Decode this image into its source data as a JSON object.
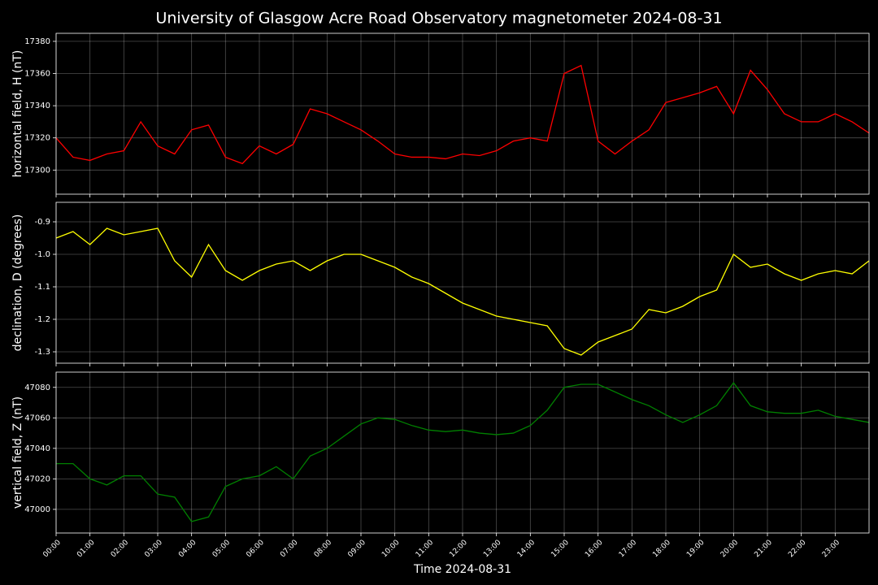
{
  "title": "University of Glasgow Acre Road Observatory magnetometer 2024-08-31",
  "chart_data": [
    {
      "type": "line",
      "ylabel": "horizontal field, H (nT)",
      "x": [
        "00:00",
        "00:30",
        "01:00",
        "01:30",
        "02:00",
        "02:30",
        "03:00",
        "03:30",
        "04:00",
        "04:30",
        "05:00",
        "05:30",
        "06:00",
        "06:30",
        "07:00",
        "07:30",
        "08:00",
        "08:30",
        "09:00",
        "09:30",
        "10:00",
        "10:30",
        "11:00",
        "11:30",
        "12:00",
        "12:30",
        "13:00",
        "13:30",
        "14:00",
        "14:30",
        "15:00",
        "15:30",
        "16:00",
        "16:30",
        "17:00",
        "17:30",
        "18:00",
        "18:30",
        "19:00",
        "19:30",
        "20:00",
        "20:30",
        "21:00",
        "21:30",
        "22:00",
        "22:30",
        "23:00",
        "23:30",
        "24:00"
      ],
      "series": [
        {
          "name": "H",
          "color": "#ff0000",
          "values": [
            17320,
            17308,
            17306,
            17310,
            17312,
            17330,
            17315,
            17310,
            17325,
            17328,
            17308,
            17304,
            17315,
            17310,
            17316,
            17338,
            17335,
            17330,
            17325,
            17318,
            17310,
            17308,
            17308,
            17307,
            17310,
            17309,
            17312,
            17318,
            17320,
            17318,
            17360,
            17365,
            17318,
            17310,
            17318,
            17325,
            17342,
            17345,
            17348,
            17352,
            17335,
            17362,
            17350,
            17335,
            17330,
            17330,
            17335,
            17330,
            17323
          ]
        }
      ],
      "xlim": [
        "00:00",
        "24:00"
      ],
      "ylim": [
        17285,
        17385
      ],
      "yticks": [
        17300,
        17320,
        17340,
        17360,
        17380
      ],
      "grid": true
    },
    {
      "type": "line",
      "ylabel": "declination, D (degrees)",
      "x": [
        "00:00",
        "00:30",
        "01:00",
        "01:30",
        "02:00",
        "02:30",
        "03:00",
        "03:30",
        "04:00",
        "04:30",
        "05:00",
        "05:30",
        "06:00",
        "06:30",
        "07:00",
        "07:30",
        "08:00",
        "08:30",
        "09:00",
        "09:30",
        "10:00",
        "10:30",
        "11:00",
        "11:30",
        "12:00",
        "12:30",
        "13:00",
        "13:30",
        "14:00",
        "14:30",
        "15:00",
        "15:30",
        "16:00",
        "16:30",
        "17:00",
        "17:30",
        "18:00",
        "18:30",
        "19:00",
        "19:30",
        "20:00",
        "20:30",
        "21:00",
        "21:30",
        "22:00",
        "22:30",
        "23:00",
        "23:30",
        "24:00"
      ],
      "series": [
        {
          "name": "D",
          "color": "#ffff00",
          "values": [
            -0.95,
            -0.93,
            -0.97,
            -0.92,
            -0.94,
            -0.93,
            -0.92,
            -1.02,
            -1.07,
            -0.97,
            -1.05,
            -1.08,
            -1.05,
            -1.03,
            -1.02,
            -1.05,
            -1.02,
            -1.0,
            -1.0,
            -1.02,
            -1.04,
            -1.07,
            -1.09,
            -1.12,
            -1.15,
            -1.17,
            -1.19,
            -1.2,
            -1.21,
            -1.22,
            -1.29,
            -1.31,
            -1.27,
            -1.25,
            -1.23,
            -1.17,
            -1.18,
            -1.16,
            -1.13,
            -1.11,
            -1.0,
            -1.04,
            -1.03,
            -1.06,
            -1.08,
            -1.06,
            -1.05,
            -1.06,
            -1.02
          ]
        }
      ],
      "xlim": [
        "00:00",
        "24:00"
      ],
      "ylim": [
        -1.335,
        -0.84
      ],
      "yticks": [
        -0.9,
        {
          "value": -1.0,
          "label": "-1.0"
        },
        -1.1,
        -1.2,
        -1.3
      ],
      "grid": true
    },
    {
      "type": "line",
      "ylabel": "vertical field, Z (nT)",
      "xlabel": "Time 2024-08-31",
      "x": [
        "00:00",
        "00:30",
        "01:00",
        "01:30",
        "02:00",
        "02:30",
        "03:00",
        "03:30",
        "04:00",
        "04:30",
        "05:00",
        "05:30",
        "06:00",
        "06:30",
        "07:00",
        "07:30",
        "08:00",
        "08:30",
        "09:00",
        "09:30",
        "10:00",
        "10:30",
        "11:00",
        "11:30",
        "12:00",
        "12:30",
        "13:00",
        "13:30",
        "14:00",
        "14:30",
        "15:00",
        "15:30",
        "16:00",
        "16:30",
        "17:00",
        "17:30",
        "18:00",
        "18:30",
        "19:00",
        "19:30",
        "20:00",
        "20:30",
        "21:00",
        "21:30",
        "22:00",
        "22:30",
        "23:00",
        "23:30",
        "24:00"
      ],
      "series": [
        {
          "name": "Z",
          "color": "#008000",
          "values": [
            47030,
            47030,
            47020,
            47016,
            47022,
            47022,
            47010,
            47008,
            46992,
            46995,
            47015,
            47020,
            47022,
            47028,
            47020,
            47035,
            47040,
            47048,
            47056,
            47060,
            47059,
            47055,
            47052,
            47051,
            47052,
            47050,
            47049,
            47050,
            47055,
            47065,
            47080,
            47082,
            47082,
            47077,
            47072,
            47068,
            47062,
            47057,
            47062,
            47068,
            47083,
            47068,
            47064,
            47063,
            47063,
            47065,
            47061,
            47059,
            47057
          ]
        }
      ],
      "xlim": [
        "00:00",
        "24:00"
      ],
      "ylim": [
        46984.5,
        47090
      ],
      "yticks": [
        47000,
        47020,
        47040,
        47060,
        47080
      ],
      "xticks": [
        "00:00",
        "01:00",
        "02:00",
        "03:00",
        "04:00",
        "05:00",
        "06:00",
        "07:00",
        "08:00",
        "09:00",
        "10:00",
        "11:00",
        "12:00",
        "13:00",
        "14:00",
        "15:00",
        "16:00",
        "17:00",
        "18:00",
        "19:00",
        "20:00",
        "21:00",
        "22:00",
        "23:00"
      ],
      "grid": true
    }
  ]
}
